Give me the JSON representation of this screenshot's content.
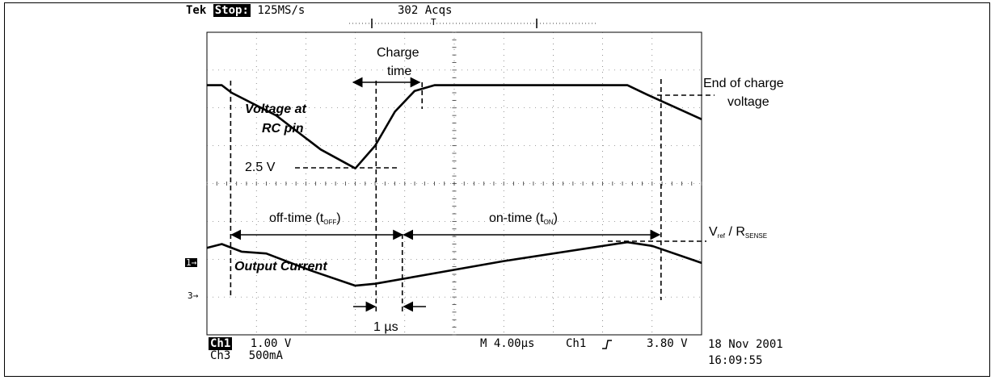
{
  "scope": {
    "brand": "Tek",
    "run_state": "Stop:",
    "sample_rate": "125MS/s",
    "acquisitions": "302 Acqs",
    "ch1_tag": "Ch1",
    "ch1_scale": "1.00 V",
    "ch3_tag": "Ch3",
    "ch3_scale": "500mA",
    "timebase": "M 4.00µs",
    "trigger_source": "Ch1",
    "trigger_slope_icon": "rising-edge-icon",
    "trigger_level": "3.80 V",
    "date": "18 Nov 2001",
    "time": "16:09:55",
    "ch1_marker": "1→",
    "ch3_marker": "3→",
    "trigger_marker": "T"
  },
  "chart_data": {
    "type": "line",
    "x_unit": "µs",
    "x_per_division": 4.0,
    "divisions": {
      "x": 10,
      "y": 8
    },
    "grid": true,
    "series": [
      {
        "name": "Voltage at RC pin",
        "points_div": [
          [
            0,
            6.6
          ],
          [
            0.3,
            6.6
          ],
          [
            0.5,
            6.4
          ],
          [
            1.4,
            5.8
          ],
          [
            2.3,
            4.9
          ],
          [
            3.0,
            4.4
          ],
          [
            3.4,
            5.0
          ],
          [
            3.8,
            5.9
          ],
          [
            4.2,
            6.45
          ],
          [
            4.6,
            6.6
          ],
          [
            8.5,
            6.6
          ],
          [
            8.9,
            6.35
          ],
          [
            10.0,
            5.7
          ]
        ]
      },
      {
        "name": "Output Current",
        "points_div": [
          [
            0,
            2.3
          ],
          [
            0.3,
            2.4
          ],
          [
            0.7,
            2.2
          ],
          [
            1.2,
            2.15
          ],
          [
            2.1,
            1.7
          ],
          [
            3.0,
            1.3
          ],
          [
            3.4,
            1.35
          ],
          [
            6.0,
            1.95
          ],
          [
            8.5,
            2.45
          ],
          [
            9.0,
            2.35
          ],
          [
            10.0,
            1.9
          ]
        ]
      }
    ],
    "annotations": {
      "voltage_label_1": "Voltage at",
      "voltage_label_2": "RC pin",
      "current_label": "Output Current",
      "charge_1": "Charge",
      "charge_2": "time",
      "end_1": "End of charge",
      "end_2": "voltage",
      "level": "2.5 V",
      "off_time": "off-time (t",
      "off_sub": "OFF",
      "on_time": "on-time (t",
      "on_sub": "ON",
      "vref": "V",
      "vref_sub": "ref",
      "rsense": " / R",
      "rsense_sub": "SENSE",
      "pulse": "1 µs",
      "close_paren": ")"
    }
  }
}
